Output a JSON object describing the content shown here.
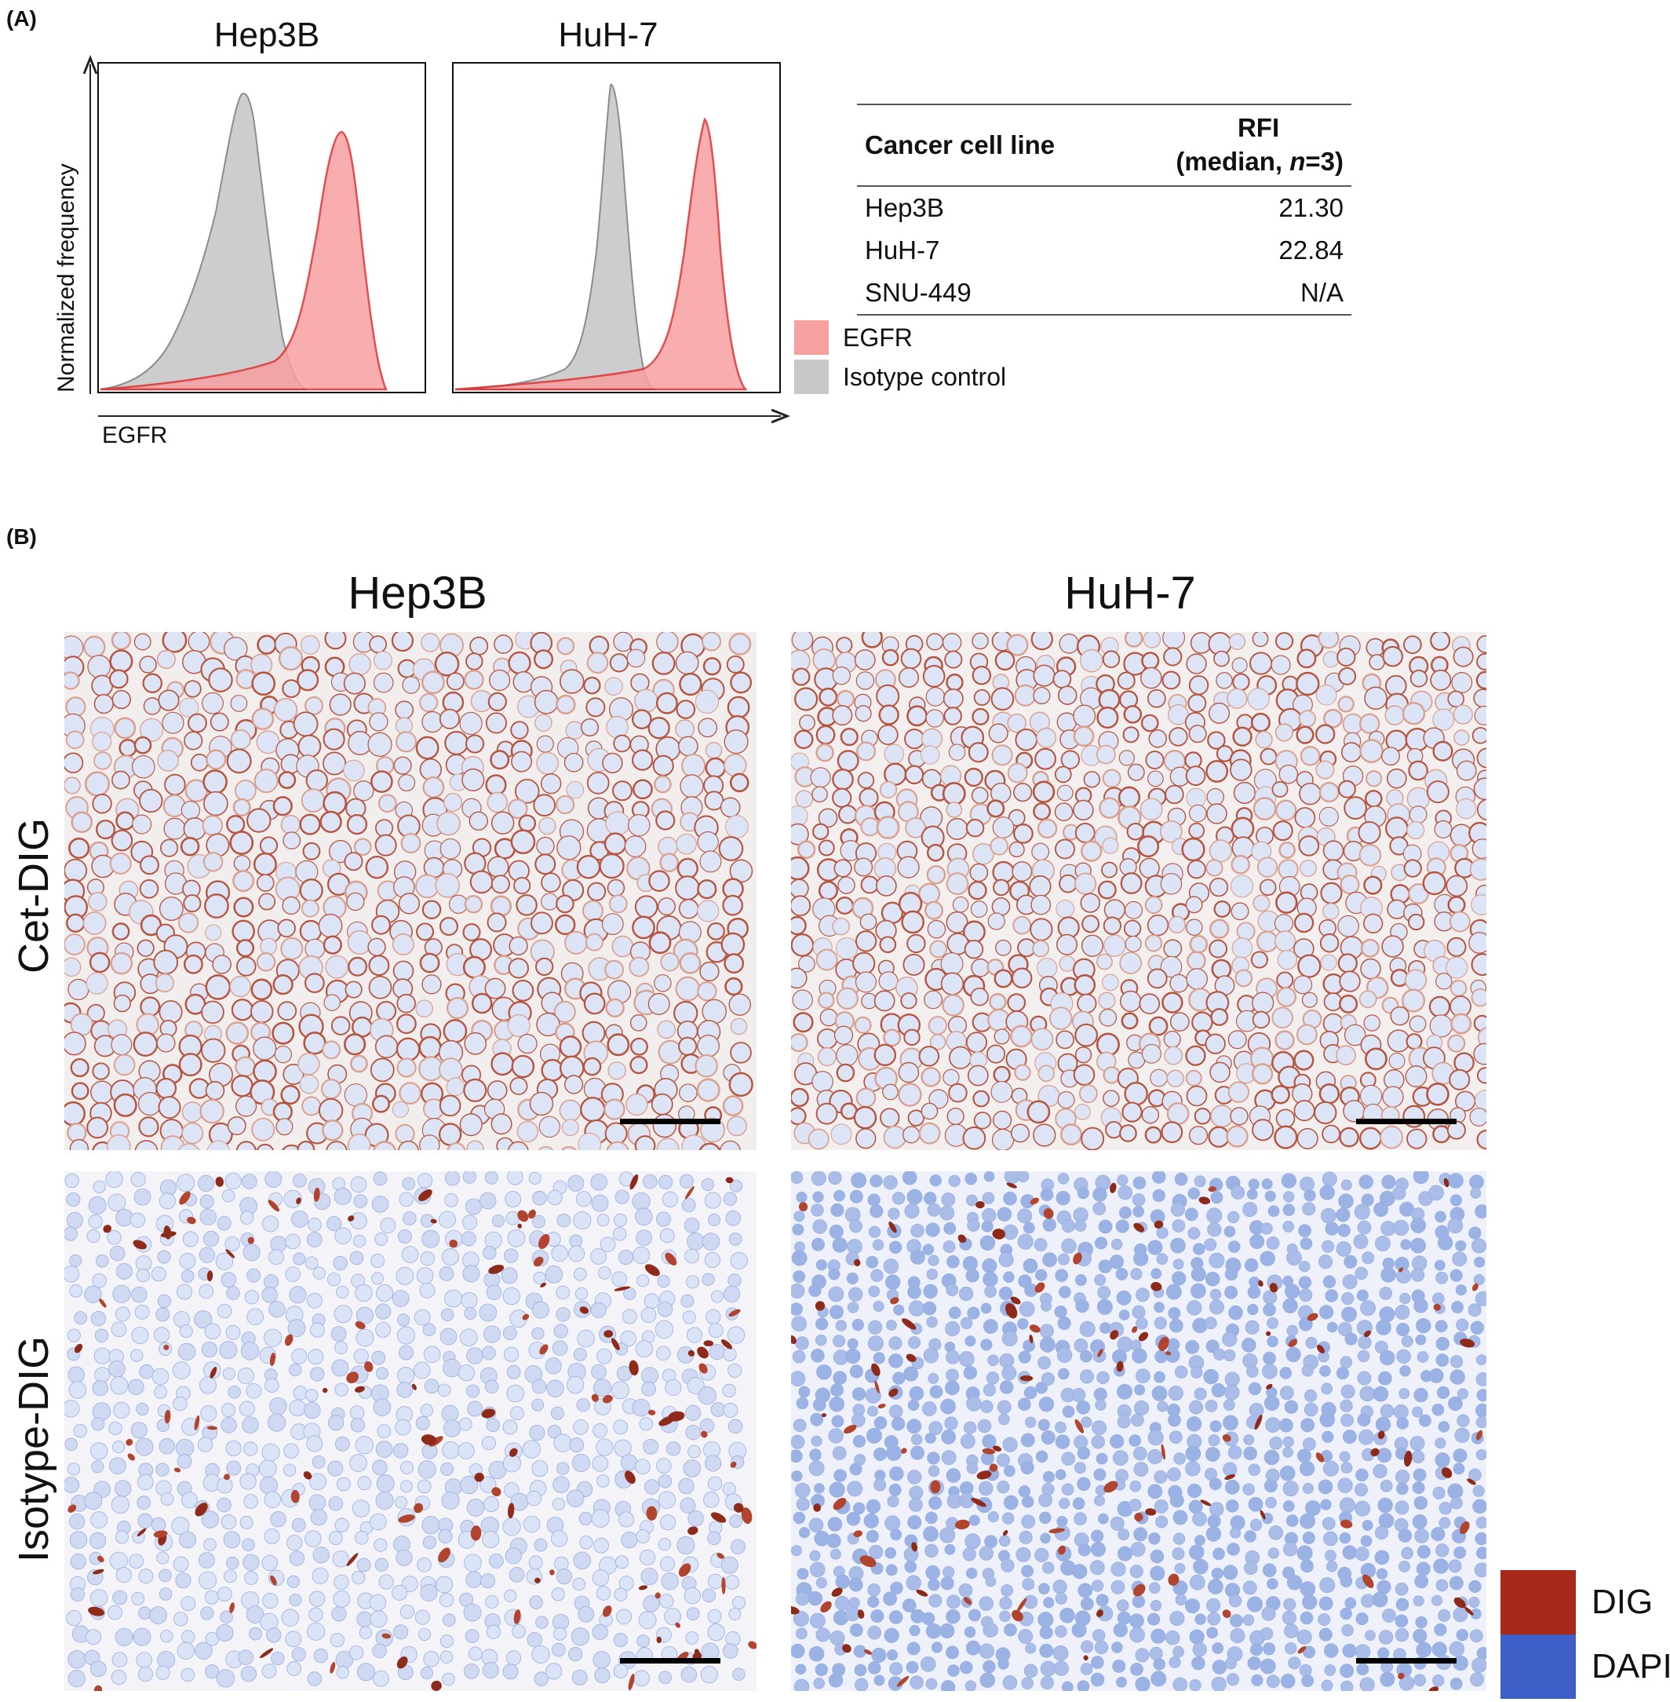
{
  "panel_a": {
    "label": "(A)",
    "hist_titles": [
      "Hep3B",
      "HuH-7"
    ],
    "y_axis_label": "Normalized frequency",
    "x_axis_label": "EGFR",
    "legend": [
      {
        "label": "EGFR",
        "color": "#f7a0a0",
        "stroke": "#e03030"
      },
      {
        "label": "Isotype control",
        "color": "#c8c8c8",
        "stroke": "#808080"
      }
    ],
    "table": {
      "header_col1": "Cancer cell line",
      "header_col2_line1": "RFI",
      "header_col2_line2_pre": "(median, ",
      "header_col2_line2_n": "n",
      "header_col2_line2_post": "=3)",
      "rows": [
        {
          "cell_line": "Hep3B",
          "rfi": "21.30"
        },
        {
          "cell_line": "HuH-7",
          "rfi": "22.84"
        },
        {
          "cell_line": "SNU-449",
          "rfi": "N/A"
        }
      ]
    }
  },
  "panel_b": {
    "label": "(B)",
    "column_titles": [
      "Hep3B",
      "HuH-7"
    ],
    "row_titles": [
      "Cet-DIG",
      "Isotype-DIG"
    ],
    "legend": [
      {
        "label": "DIG",
        "color": "#a8291a"
      },
      {
        "label": "DAPI",
        "color": "#3f5fc8"
      }
    ]
  }
}
